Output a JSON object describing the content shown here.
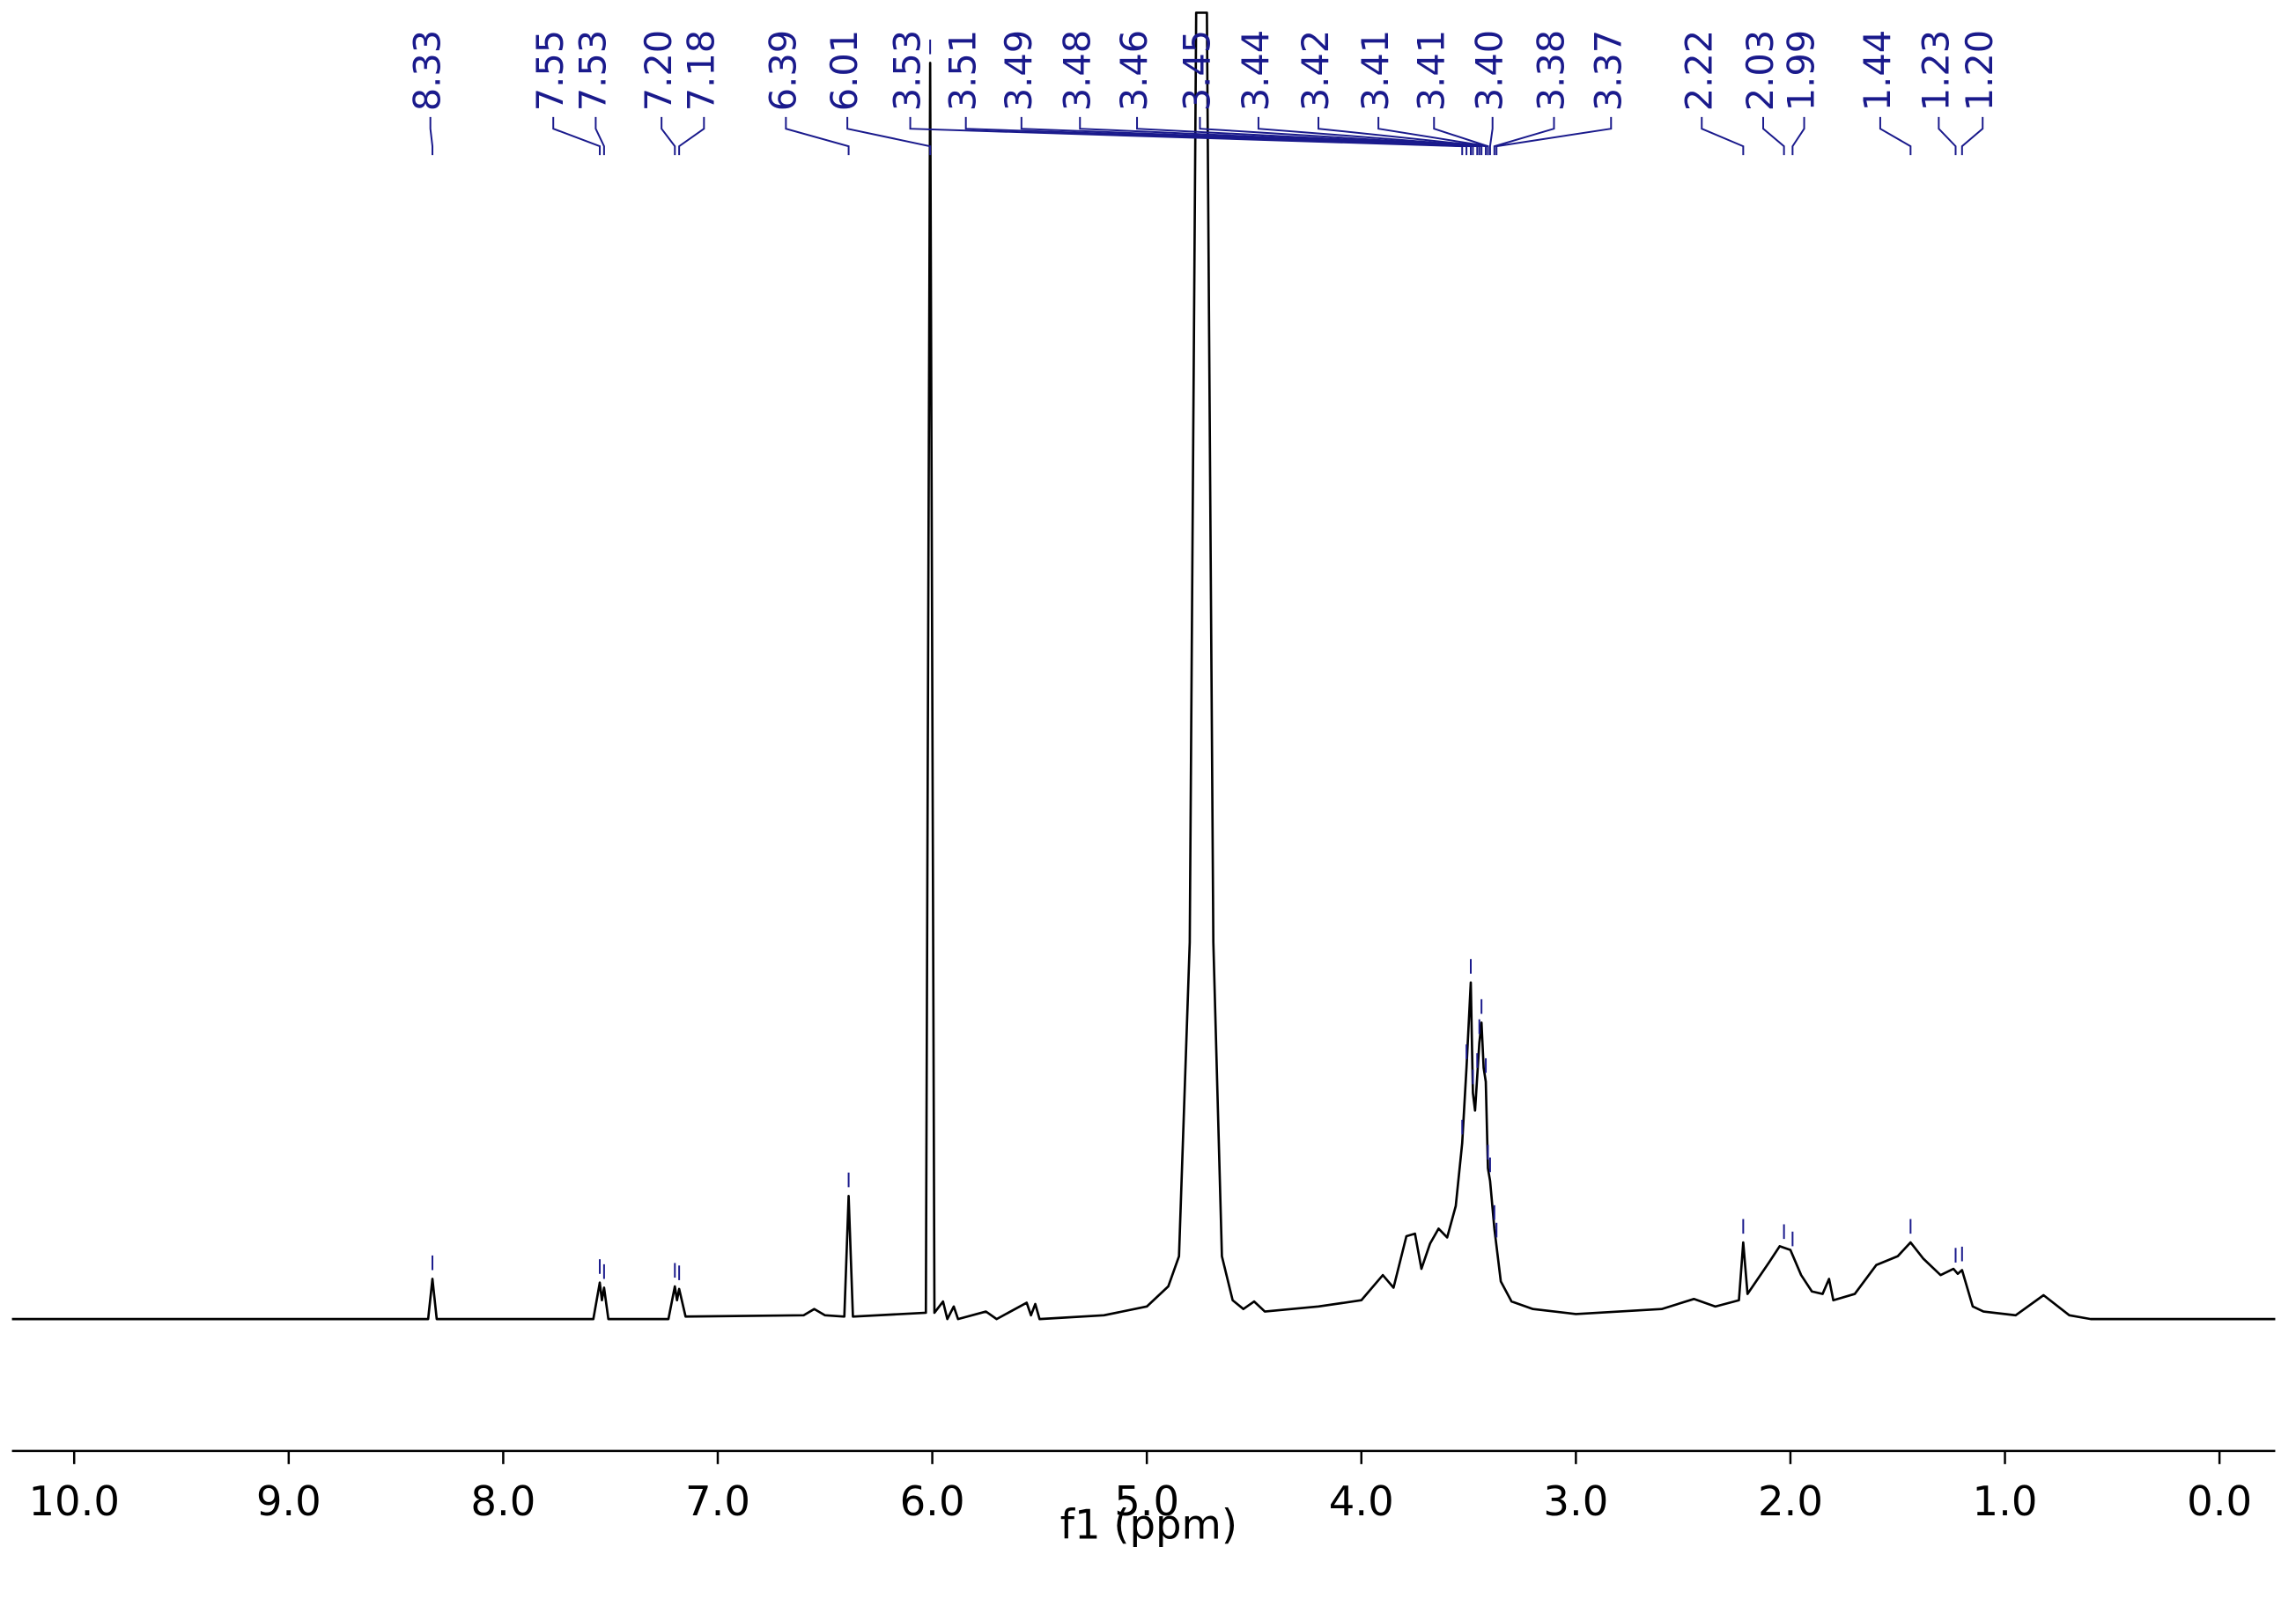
{
  "chart_data": {
    "type": "line",
    "xlabel": "f1 (ppm)",
    "xlim": [
      10.29,
      -0.26
    ],
    "ylim": [
      -10.5,
      104
    ],
    "xticks": [
      {
        "value": 10,
        "label": "10.0"
      },
      {
        "value": 9,
        "label": "9.0"
      },
      {
        "value": 8,
        "label": "8.0"
      },
      {
        "value": 7,
        "label": "7.0"
      },
      {
        "value": 6,
        "label": "6.0"
      },
      {
        "value": 5,
        "label": "5.0"
      },
      {
        "value": 4,
        "label": "4.0"
      },
      {
        "value": 3,
        "label": "3.0"
      },
      {
        "value": 2,
        "label": "2.0"
      },
      {
        "value": 1,
        "label": "1.0"
      },
      {
        "value": 0,
        "label": "0.0"
      }
    ],
    "series": [
      {
        "color": "#000000",
        "x": [
          10.29,
          8.35,
          8.33,
          8.31,
          7.58,
          7.55,
          7.54,
          7.53,
          7.51,
          7.23,
          7.2,
          7.19,
          7.18,
          7.15,
          6.6,
          6.55,
          6.5,
          6.41,
          6.39,
          6.37,
          6.03,
          6.01,
          5.99,
          5.95,
          5.93,
          5.9,
          5.88,
          5.75,
          5.7,
          5.56,
          5.54,
          5.52,
          5.5,
          5.2,
          5.0,
          4.9,
          4.85,
          4.8,
          4.77,
          4.72,
          4.69,
          4.65,
          4.6,
          4.55,
          4.5,
          4.45,
          4.2,
          4.0,
          3.9,
          3.85,
          3.79,
          3.75,
          3.72,
          3.68,
          3.64,
          3.6,
          3.56,
          3.53,
          3.51,
          3.49,
          3.48,
          3.47,
          3.45,
          3.44,
          3.43,
          3.42,
          3.41,
          3.4,
          3.38,
          3.35,
          3.3,
          3.2,
          3.0,
          2.8,
          2.6,
          2.45,
          2.35,
          2.24,
          2.22,
          2.2,
          2.1,
          2.05,
          2.0,
          1.95,
          1.9,
          1.85,
          1.82,
          1.8,
          1.7,
          1.6,
          1.5,
          1.44,
          1.38,
          1.3,
          1.24,
          1.22,
          1.2,
          1.15,
          1.1,
          0.95,
          0.82,
          0.7,
          0.6,
          -0.26
        ],
        "values": [
          0,
          0,
          3.2,
          0,
          0,
          2.9,
          1.5,
          2.5,
          0,
          0,
          2.6,
          1.5,
          2.4,
          0.2,
          0.3,
          0.8,
          0.3,
          0.2,
          9.8,
          0.2,
          0.5,
          100,
          0.5,
          1.4,
          0,
          1.0,
          0,
          0.6,
          0,
          1.3,
          0.3,
          1.2,
          0,
          0.3,
          1.0,
          2.6,
          5,
          30,
          104,
          104,
          30,
          5,
          1.5,
          0.8,
          1.4,
          0.6,
          1.0,
          1.5,
          3.5,
          2.5,
          6.6,
          6.8,
          4,
          6,
          7.2,
          6.5,
          9,
          14,
          20,
          26.8,
          18,
          16.6,
          22,
          23.6,
          20,
          18.9,
          12,
          11,
          7.2,
          3,
          1.4,
          0.8,
          0.4,
          0.6,
          0.8,
          1.6,
          1.0,
          1.5,
          6.1,
          2,
          4.5,
          5.8,
          5.5,
          3.5,
          2.2,
          2.0,
          3.2,
          1.5,
          2.0,
          4.3,
          5.0,
          6.1,
          4.8,
          3.5,
          4.0,
          3.6,
          3.9,
          1.0,
          0.6,
          0.3,
          1.9,
          0.3,
          0,
          0
        ]
      }
    ],
    "peak_color": "#1a1a8c",
    "peaks": [
      8.33,
      7.55,
      7.53,
      {
        "value": 7.2,
        "label": "7.20"
      },
      7.18,
      6.39,
      6.01,
      3.53,
      3.51,
      3.49,
      3.48,
      3.46,
      3.45,
      3.44,
      3.42,
      3.41,
      3.41,
      {
        "value": 3.4,
        "label": "3.40"
      },
      3.38,
      3.37,
      2.22,
      2.03,
      1.99,
      1.44,
      1.23,
      {
        "value": 1.2,
        "label": "1.20"
      }
    ]
  }
}
